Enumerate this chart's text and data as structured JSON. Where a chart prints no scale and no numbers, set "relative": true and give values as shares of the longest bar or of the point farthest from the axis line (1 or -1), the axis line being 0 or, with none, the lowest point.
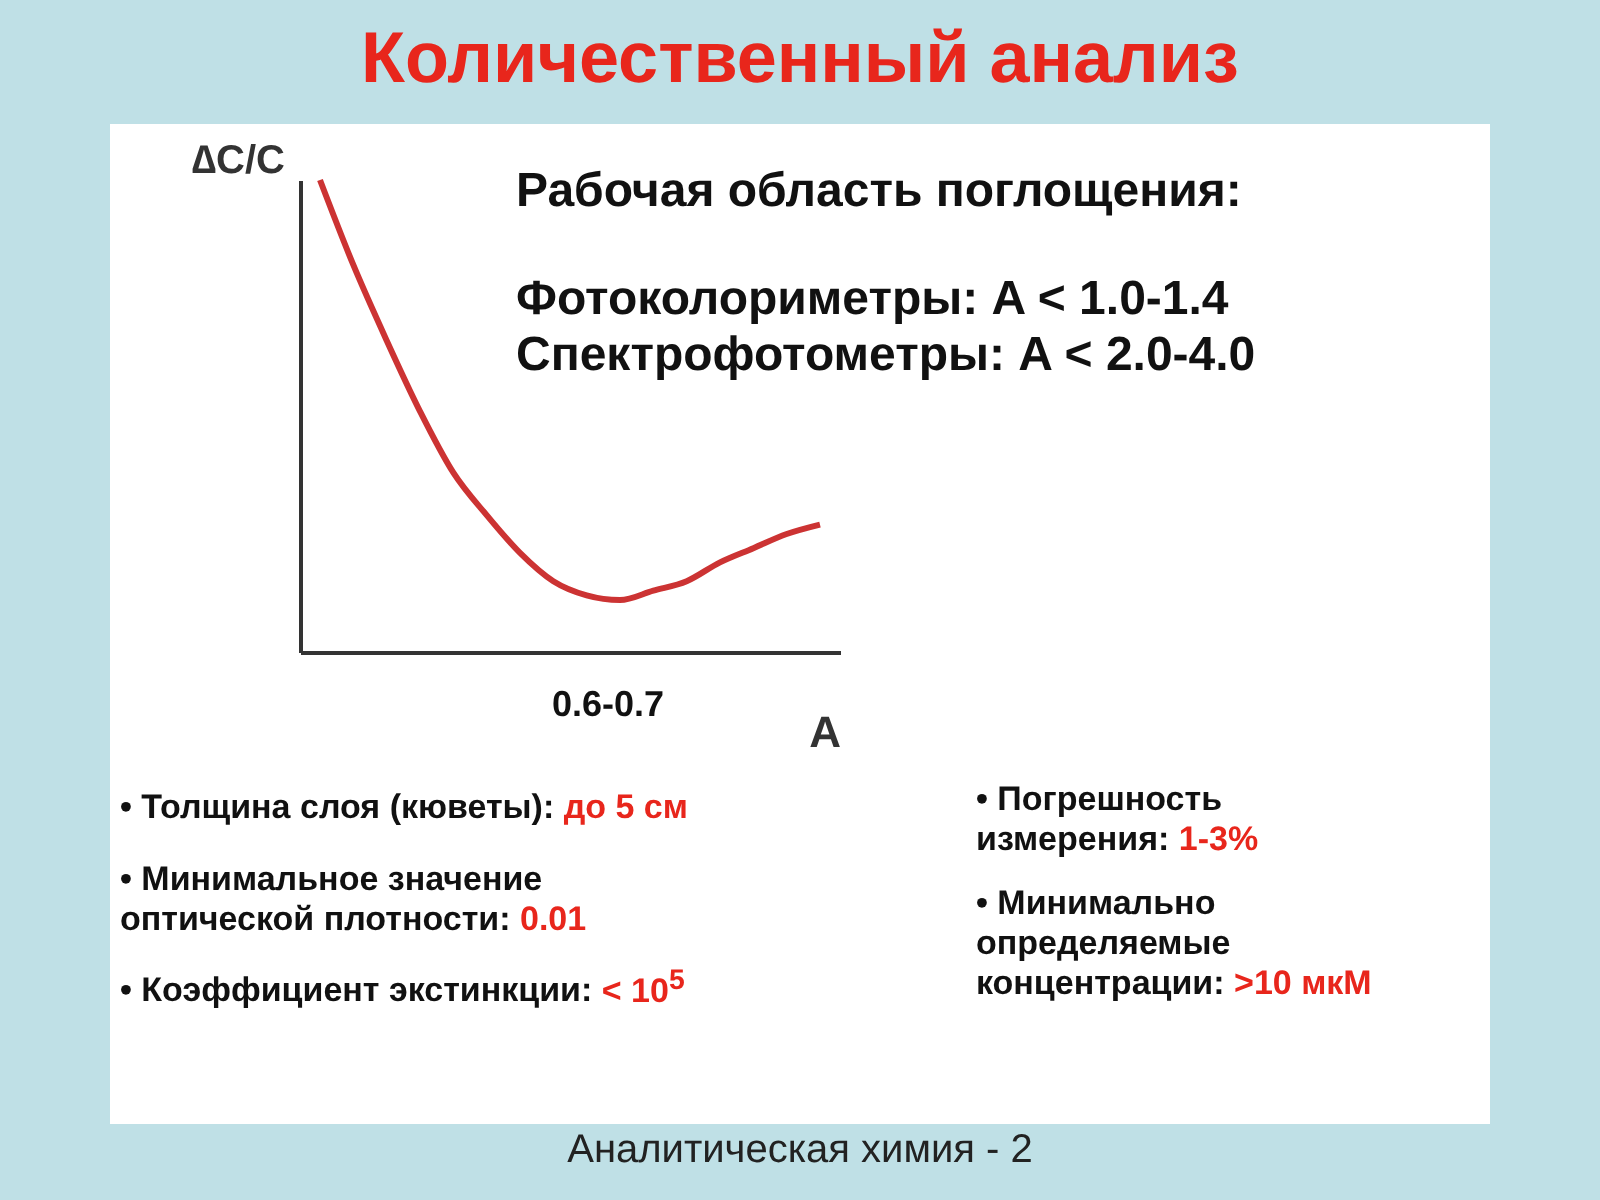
{
  "chart_data": {
    "type": "line",
    "title": "Количественный анализ",
    "xlabel": "A",
    "ylabel": "∆C/C",
    "relative": true,
    "color": "#cc3333",
    "categories": [
      null,
      null,
      null,
      null,
      null,
      null,
      null,
      null,
      null,
      null,
      null,
      null,
      null,
      null,
      null,
      null
    ],
    "values": [
      1,
      0.82,
      0.66,
      0.51,
      0.38,
      0.29,
      0.21,
      0.15,
      0.12,
      0.11,
      0.13,
      0.15,
      0.19,
      0.22,
      0.25,
      0.27
    ],
    "annotations": [
      "Рабочая область поглощения:",
      "Фотоколориметры: A < 1.0-1.4",
      "Спектрофотометры: A < 2.0-4.0",
      "0.6-0.7",
      "• Толщина слоя (кюветы):",
      "до 5 см",
      "• Минимальное значение оптической плотности:",
      "0.01",
      "• Коэффициент экстинкции:",
      "< 10$^{5}$",
      "• Погрешность измерения:",
      "1-3%",
      "• Минимально определяемые концентрации:",
      ">10 мкМ",
      "Аналитическая химия - 2"
    ]
  }
}
